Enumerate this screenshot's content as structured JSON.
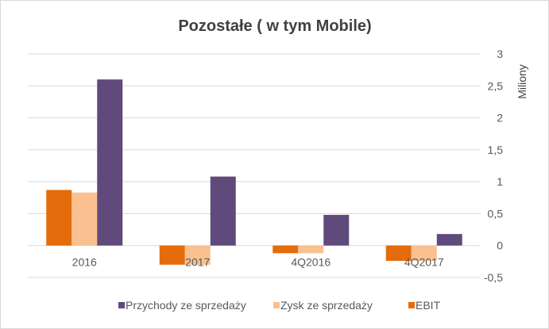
{
  "chart_data": {
    "type": "bar",
    "title": "Pozostałe ( w tym Mobile)",
    "ylabel": "Miliony",
    "xlabel": "",
    "categories": [
      "2016",
      "2017",
      "4Q2016",
      "4Q2017"
    ],
    "series": [
      {
        "name": "EBIT",
        "color": "#e46c0a",
        "values": [
          0.87,
          -0.3,
          -0.12,
          -0.24
        ]
      },
      {
        "name": "Zysk ze sprzedaży",
        "color": "#fac090",
        "values": [
          0.83,
          -0.3,
          -0.12,
          -0.24
        ]
      },
      {
        "name": "Przychody ze sprzedaży",
        "color": "#604a7b",
        "values": [
          2.6,
          1.08,
          0.48,
          0.18
        ]
      }
    ],
    "legend_order": [
      "Przychody ze sprzedaży",
      "Zysk ze sprzedaży",
      "EBIT"
    ],
    "ylim": [
      -0.5,
      3
    ],
    "yticks": [
      3,
      2.5,
      2,
      1.5,
      1,
      0.5,
      0,
      -0.5
    ],
    "ytick_labels": [
      "3",
      "2,5",
      "2",
      "1,5",
      "1",
      "0,5",
      "0",
      "-0,5"
    ],
    "grid": true,
    "legend_position": "bottom",
    "axis_position": "right"
  }
}
